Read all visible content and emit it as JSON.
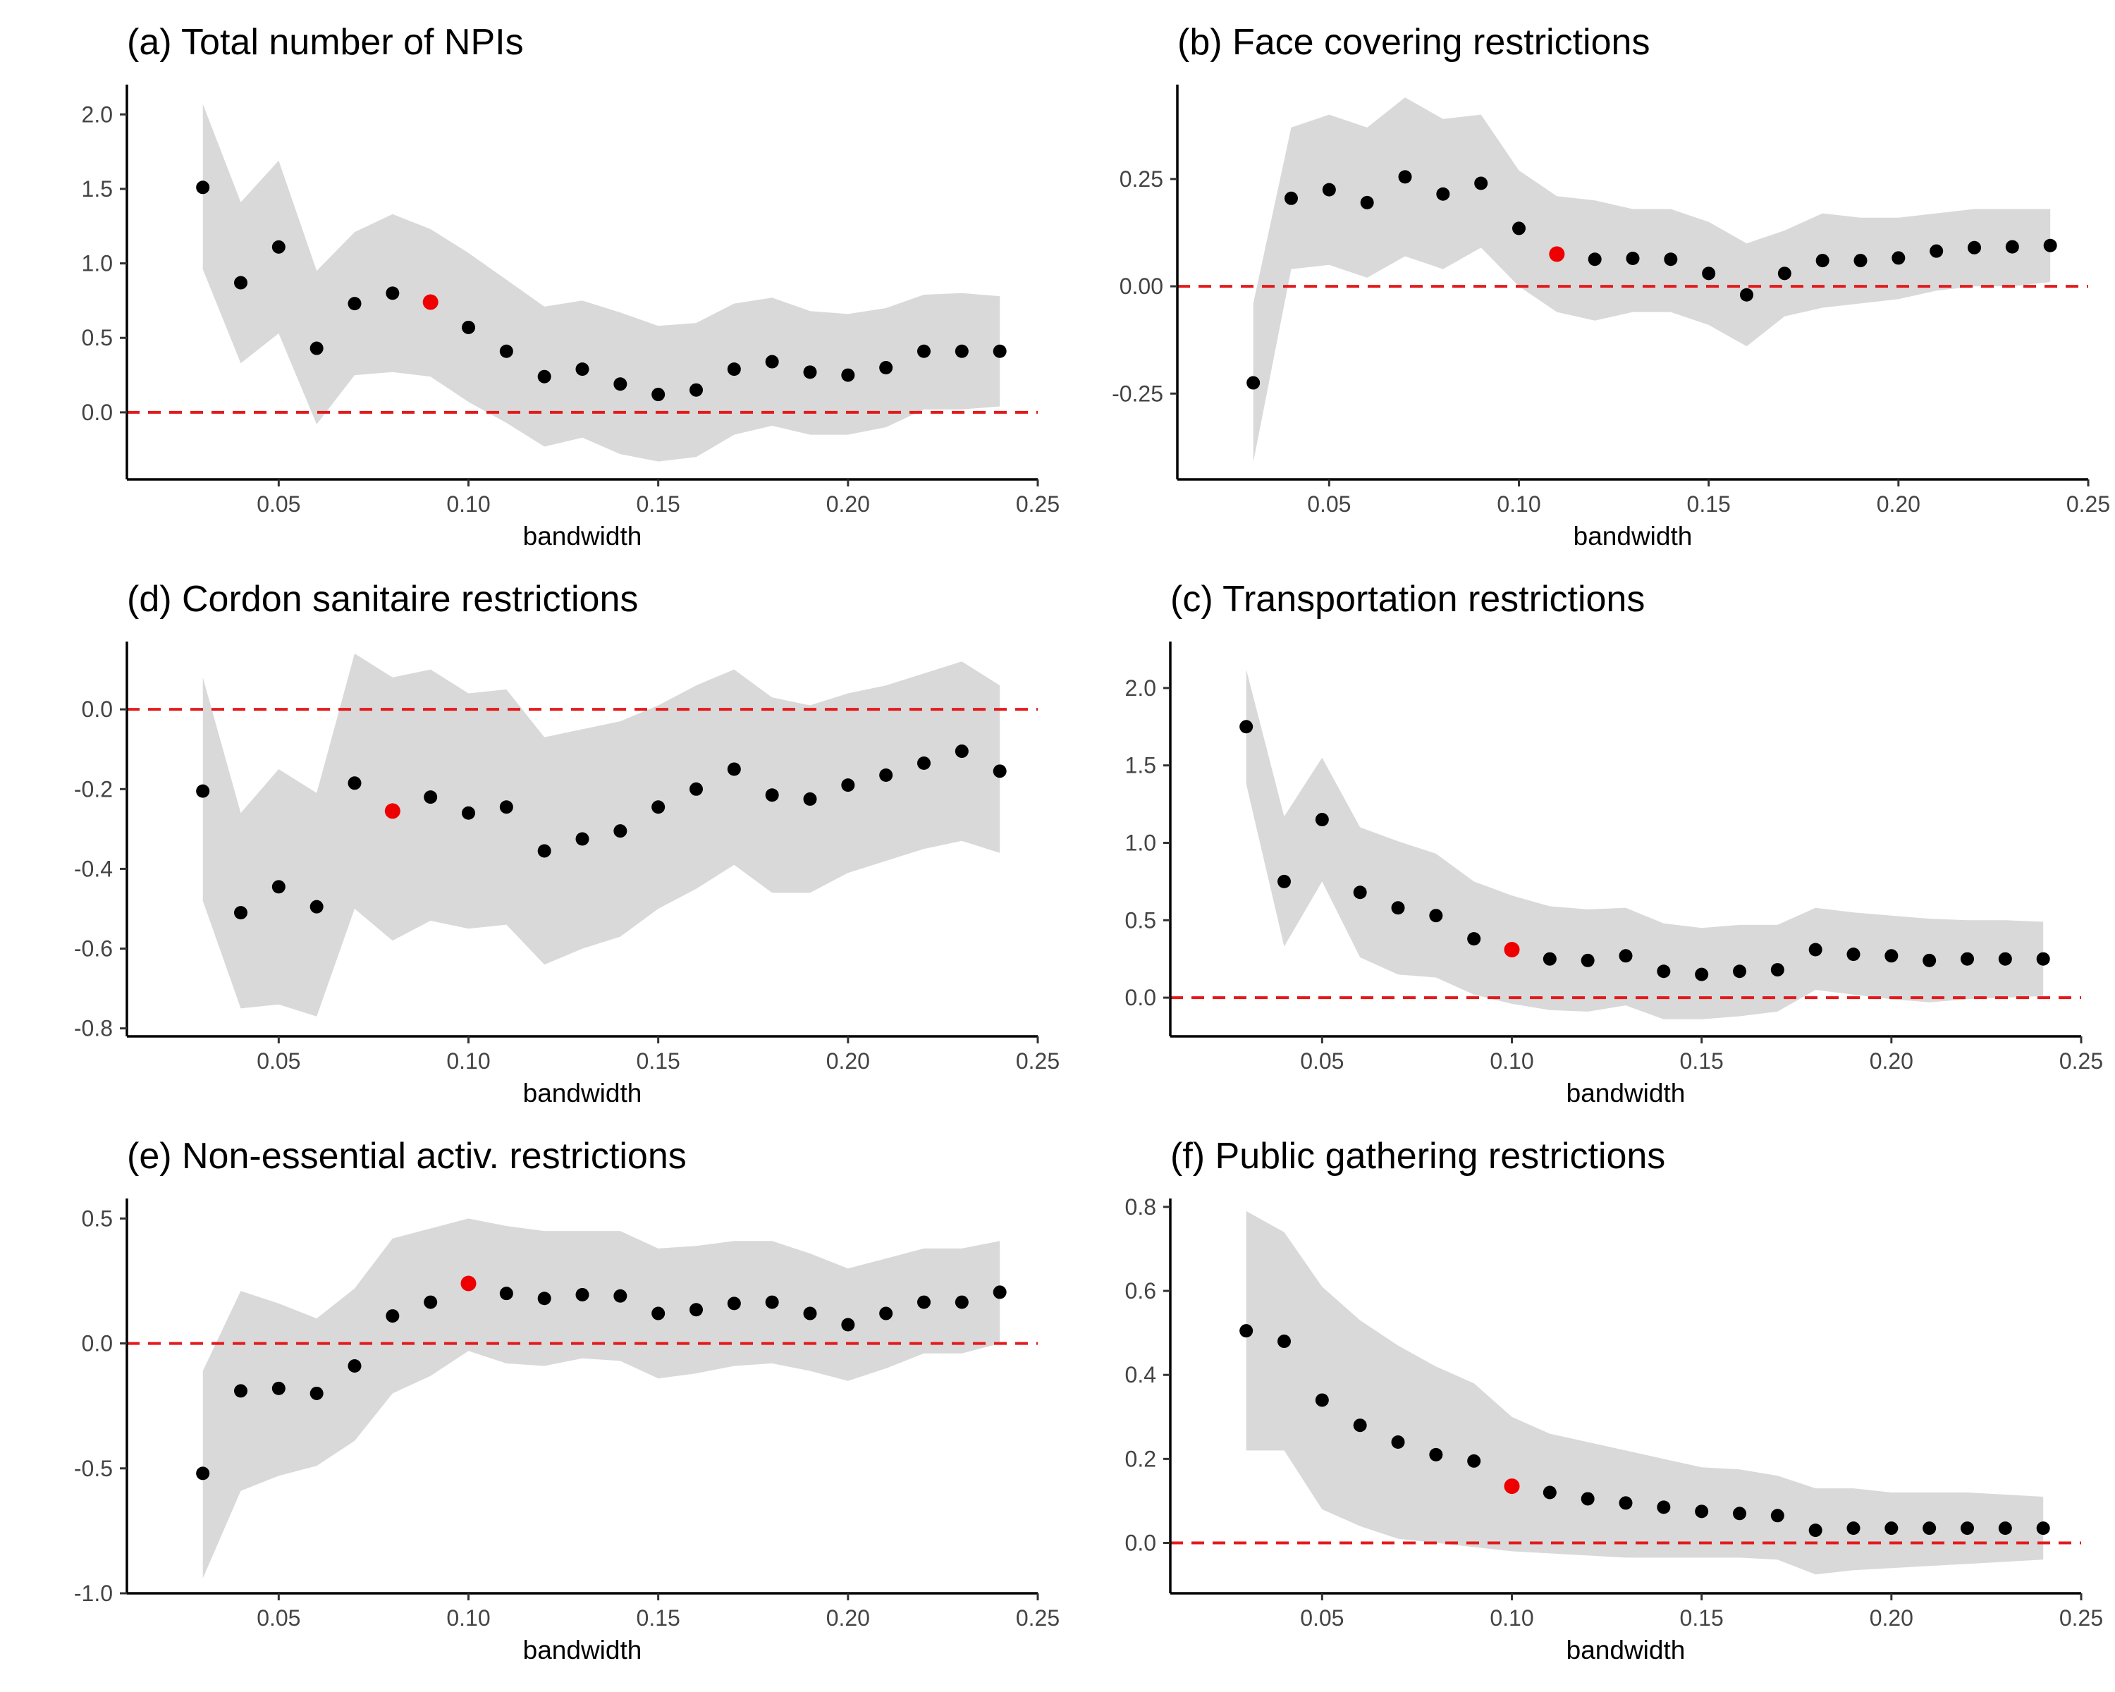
{
  "chart_data": [
    {
      "type": "scatter",
      "panel": "a",
      "title": "(a) Total number of NPIs",
      "xlabel": "bandwidth",
      "ylabel": "",
      "xlim": [
        0.01,
        0.25
      ],
      "ylim": [
        -0.45,
        2.2
      ],
      "xticks": [
        0.05,
        0.1,
        0.15,
        0.2,
        0.25
      ],
      "xtick_labels": [
        "0.05",
        "0.10",
        "0.15",
        "0.20",
        "0.25"
      ],
      "yticks": [
        0.0,
        0.5,
        1.0,
        1.5,
        2.0
      ],
      "ytick_labels": [
        "0.0",
        "0.5",
        "1.0",
        "1.5",
        "2.0"
      ],
      "reference_line": 0,
      "highlight_x": 0.09,
      "x": [
        0.03,
        0.04,
        0.05,
        0.06,
        0.07,
        0.08,
        0.09,
        0.1,
        0.11,
        0.12,
        0.13,
        0.14,
        0.15,
        0.16,
        0.17,
        0.18,
        0.19,
        0.2,
        0.21,
        0.22,
        0.23,
        0.24
      ],
      "y": [
        1.51,
        0.87,
        1.11,
        0.43,
        0.73,
        0.8,
        0.74,
        0.57,
        0.41,
        0.24,
        0.29,
        0.19,
        0.12,
        0.15,
        0.29,
        0.34,
        0.27,
        0.25,
        0.3,
        0.41,
        0.41,
        0.41
      ],
      "lower": [
        0.96,
        0.33,
        0.53,
        -0.08,
        0.25,
        0.27,
        0.24,
        0.07,
        -0.07,
        -0.23,
        -0.17,
        -0.28,
        -0.33,
        -0.3,
        -0.15,
        -0.09,
        -0.15,
        -0.15,
        -0.1,
        0.02,
        0.02,
        0.04
      ],
      "upper": [
        2.07,
        1.41,
        1.69,
        0.95,
        1.21,
        1.33,
        1.23,
        1.07,
        0.89,
        0.71,
        0.75,
        0.67,
        0.58,
        0.6,
        0.73,
        0.77,
        0.68,
        0.66,
        0.7,
        0.79,
        0.8,
        0.78
      ],
      "colors": {
        "point": "#000000",
        "highlight": "#ee0000",
        "ribbon": "#d9d9d9",
        "zero_line": "#e31a1c"
      }
    },
    {
      "type": "scatter",
      "panel": "b",
      "title": "(b) Face covering restrictions",
      "xlabel": "bandwidth",
      "ylabel": "",
      "xlim": [
        0.01,
        0.25
      ],
      "ylim": [
        -0.45,
        0.47
      ],
      "xticks": [
        0.05,
        0.1,
        0.15,
        0.2,
        0.25
      ],
      "xtick_labels": [
        "0.05",
        "0.10",
        "0.15",
        "0.20",
        "0.25"
      ],
      "yticks": [
        -0.25,
        0.0,
        0.25
      ],
      "ytick_labels": [
        "-0.25",
        "0.00",
        "0.25"
      ],
      "reference_line": 0,
      "highlight_x": 0.11,
      "x": [
        0.03,
        0.04,
        0.05,
        0.06,
        0.07,
        0.08,
        0.09,
        0.1,
        0.11,
        0.12,
        0.13,
        0.14,
        0.15,
        0.16,
        0.17,
        0.18,
        0.19,
        0.2,
        0.21,
        0.22,
        0.23,
        0.24
      ],
      "y": [
        -0.225,
        0.205,
        0.225,
        0.195,
        0.255,
        0.215,
        0.24,
        0.135,
        0.075,
        0.063,
        0.065,
        0.063,
        0.03,
        -0.02,
        0.03,
        0.06,
        0.06,
        0.066,
        0.082,
        0.09,
        0.092,
        0.095
      ],
      "lower": [
        -0.41,
        0.04,
        0.05,
        0.02,
        0.07,
        0.04,
        0.09,
        0.0,
        -0.06,
        -0.08,
        -0.06,
        -0.06,
        -0.09,
        -0.14,
        -0.07,
        -0.05,
        -0.04,
        -0.03,
        -0.01,
        0.0,
        0.0,
        0.01
      ],
      "upper": [
        -0.04,
        0.37,
        0.4,
        0.37,
        0.44,
        0.39,
        0.4,
        0.27,
        0.21,
        0.2,
        0.18,
        0.18,
        0.15,
        0.1,
        0.13,
        0.17,
        0.16,
        0.16,
        0.17,
        0.18,
        0.18,
        0.18
      ],
      "colors": {
        "point": "#000000",
        "highlight": "#ee0000",
        "ribbon": "#d9d9d9",
        "zero_line": "#e31a1c"
      }
    },
    {
      "type": "scatter",
      "panel": "d",
      "title": "(d) Cordon sanitaire restrictions",
      "xlabel": "bandwidth",
      "ylabel": "",
      "xlim": [
        0.01,
        0.25
      ],
      "ylim": [
        -0.82,
        0.17
      ],
      "xticks": [
        0.05,
        0.1,
        0.15,
        0.2,
        0.25
      ],
      "xtick_labels": [
        "0.05",
        "0.10",
        "0.15",
        "0.20",
        "0.25"
      ],
      "yticks": [
        -0.8,
        -0.6,
        -0.4,
        -0.2,
        0.0
      ],
      "ytick_labels": [
        "-0.8",
        "-0.6",
        "-0.4",
        "-0.2",
        "0.0"
      ],
      "reference_line": 0,
      "highlight_x": 0.08,
      "x": [
        0.03,
        0.04,
        0.05,
        0.06,
        0.07,
        0.08,
        0.09,
        0.1,
        0.11,
        0.12,
        0.13,
        0.14,
        0.15,
        0.16,
        0.17,
        0.18,
        0.19,
        0.2,
        0.21,
        0.22,
        0.23,
        0.24
      ],
      "y": [
        -0.205,
        -0.51,
        -0.445,
        -0.495,
        -0.185,
        -0.255,
        -0.22,
        -0.26,
        -0.245,
        -0.355,
        -0.325,
        -0.305,
        -0.245,
        -0.2,
        -0.15,
        -0.215,
        -0.225,
        -0.19,
        -0.165,
        -0.135,
        -0.105,
        -0.155
      ],
      "lower": [
        -0.48,
        -0.75,
        -0.74,
        -0.77,
        -0.5,
        -0.58,
        -0.53,
        -0.55,
        -0.54,
        -0.64,
        -0.6,
        -0.57,
        -0.5,
        -0.45,
        -0.39,
        -0.46,
        -0.46,
        -0.41,
        -0.38,
        -0.35,
        -0.33,
        -0.36
      ],
      "upper": [
        0.08,
        -0.26,
        -0.15,
        -0.21,
        0.14,
        0.08,
        0.1,
        0.04,
        0.05,
        -0.07,
        -0.05,
        -0.03,
        0.01,
        0.06,
        0.1,
        0.03,
        0.01,
        0.04,
        0.06,
        0.09,
        0.12,
        0.06
      ],
      "colors": {
        "point": "#000000",
        "highlight": "#ee0000",
        "ribbon": "#d9d9d9",
        "zero_line": "#e31a1c"
      }
    },
    {
      "type": "scatter",
      "panel": "c",
      "title": "(c) Transportation restrictions",
      "xlabel": "bandwidth",
      "ylabel": "",
      "xlim": [
        0.01,
        0.25
      ],
      "ylim": [
        -0.25,
        2.3
      ],
      "xticks": [
        0.05,
        0.1,
        0.15,
        0.2,
        0.25
      ],
      "xtick_labels": [
        "0.05",
        "0.10",
        "0.15",
        "0.20",
        "0.25"
      ],
      "yticks": [
        0.0,
        0.5,
        1.0,
        1.5,
        2.0
      ],
      "ytick_labels": [
        "0.0",
        "0.5",
        "1.0",
        "1.5",
        "2.0"
      ],
      "reference_line": 0,
      "highlight_x": 0.1,
      "x": [
        0.03,
        0.04,
        0.05,
        0.06,
        0.07,
        0.08,
        0.09,
        0.1,
        0.11,
        0.12,
        0.13,
        0.14,
        0.15,
        0.16,
        0.17,
        0.18,
        0.19,
        0.2,
        0.21,
        0.22,
        0.23,
        0.24
      ],
      "y": [
        1.75,
        0.75,
        1.15,
        0.68,
        0.58,
        0.53,
        0.38,
        0.31,
        0.25,
        0.24,
        0.27,
        0.17,
        0.15,
        0.17,
        0.18,
        0.31,
        0.28,
        0.27,
        0.24,
        0.25,
        0.25,
        0.25
      ],
      "lower": [
        1.38,
        0.33,
        0.75,
        0.26,
        0.15,
        0.13,
        0.02,
        -0.04,
        -0.08,
        -0.09,
        -0.05,
        -0.14,
        -0.14,
        -0.12,
        -0.09,
        0.05,
        0.02,
        -0.01,
        -0.03,
        -0.01,
        0.0,
        0.01
      ],
      "upper": [
        2.12,
        1.17,
        1.55,
        1.1,
        1.01,
        0.93,
        0.75,
        0.66,
        0.59,
        0.57,
        0.58,
        0.48,
        0.45,
        0.47,
        0.47,
        0.58,
        0.55,
        0.53,
        0.51,
        0.5,
        0.5,
        0.49
      ],
      "colors": {
        "point": "#000000",
        "highlight": "#ee0000",
        "ribbon": "#d9d9d9",
        "zero_line": "#e31a1c"
      }
    },
    {
      "type": "scatter",
      "panel": "e",
      "title": "(e) Non-essential activ. restrictions",
      "xlabel": "bandwidth",
      "ylabel": "",
      "xlim": [
        0.01,
        0.25
      ],
      "ylim": [
        -1.0,
        0.58
      ],
      "xticks": [
        0.05,
        0.1,
        0.15,
        0.2,
        0.25
      ],
      "xtick_labels": [
        "0.05",
        "0.10",
        "0.15",
        "0.20",
        "0.25"
      ],
      "yticks": [
        -1.0,
        -0.5,
        0.0,
        0.5
      ],
      "ytick_labels": [
        "-1.0",
        "-0.5",
        "0.0",
        "0.5"
      ],
      "reference_line": 0,
      "highlight_x": 0.1,
      "x": [
        0.03,
        0.04,
        0.05,
        0.06,
        0.07,
        0.08,
        0.09,
        0.1,
        0.11,
        0.12,
        0.13,
        0.14,
        0.15,
        0.16,
        0.17,
        0.18,
        0.19,
        0.2,
        0.21,
        0.22,
        0.23,
        0.24
      ],
      "y": [
        -0.52,
        -0.19,
        -0.18,
        -0.2,
        -0.09,
        0.11,
        0.165,
        0.24,
        0.2,
        0.18,
        0.195,
        0.19,
        0.12,
        0.135,
        0.16,
        0.165,
        0.12,
        0.075,
        0.12,
        0.165,
        0.165,
        0.205
      ],
      "lower": [
        -0.94,
        -0.59,
        -0.53,
        -0.49,
        -0.39,
        -0.2,
        -0.13,
        -0.03,
        -0.08,
        -0.09,
        -0.06,
        -0.07,
        -0.14,
        -0.12,
        -0.09,
        -0.08,
        -0.11,
        -0.15,
        -0.1,
        -0.04,
        -0.04,
        0.0
      ],
      "upper": [
        -0.11,
        0.21,
        0.16,
        0.1,
        0.22,
        0.42,
        0.46,
        0.5,
        0.47,
        0.45,
        0.45,
        0.45,
        0.38,
        0.39,
        0.41,
        0.41,
        0.36,
        0.3,
        0.34,
        0.38,
        0.38,
        0.41
      ],
      "colors": {
        "point": "#000000",
        "highlight": "#ee0000",
        "ribbon": "#d9d9d9",
        "zero_line": "#e31a1c"
      }
    },
    {
      "type": "scatter",
      "panel": "f",
      "title": "(f) Public gathering restrictions",
      "xlabel": "bandwidth",
      "ylabel": "",
      "xlim": [
        0.01,
        0.25
      ],
      "ylim": [
        -0.12,
        0.82
      ],
      "xticks": [
        0.05,
        0.1,
        0.15,
        0.2,
        0.25
      ],
      "xtick_labels": [
        "0.05",
        "0.10",
        "0.15",
        "0.20",
        "0.25"
      ],
      "yticks": [
        0.0,
        0.2,
        0.4,
        0.6,
        0.8
      ],
      "ytick_labels": [
        "0.0",
        "0.2",
        "0.4",
        "0.6",
        "0.8"
      ],
      "reference_line": 0,
      "highlight_x": 0.1,
      "x": [
        0.03,
        0.04,
        0.05,
        0.06,
        0.07,
        0.08,
        0.09,
        0.1,
        0.11,
        0.12,
        0.13,
        0.14,
        0.15,
        0.16,
        0.17,
        0.18,
        0.19,
        0.2,
        0.21,
        0.22,
        0.23,
        0.24
      ],
      "y": [
        0.505,
        0.48,
        0.34,
        0.28,
        0.24,
        0.21,
        0.195,
        0.135,
        0.12,
        0.105,
        0.095,
        0.085,
        0.075,
        0.07,
        0.065,
        0.03,
        0.035,
        0.035,
        0.035,
        0.035,
        0.035,
        0.035
      ],
      "lower": [
        0.22,
        0.22,
        0.08,
        0.04,
        0.01,
        0.0,
        -0.01,
        -0.02,
        -0.025,
        -0.03,
        -0.035,
        -0.035,
        -0.035,
        -0.035,
        -0.04,
        -0.075,
        -0.065,
        -0.06,
        -0.055,
        -0.05,
        -0.045,
        -0.04
      ],
      "upper": [
        0.79,
        0.74,
        0.61,
        0.53,
        0.47,
        0.42,
        0.38,
        0.3,
        0.26,
        0.24,
        0.22,
        0.2,
        0.18,
        0.175,
        0.16,
        0.13,
        0.13,
        0.12,
        0.12,
        0.12,
        0.115,
        0.11
      ],
      "colors": {
        "point": "#000000",
        "highlight": "#ee0000",
        "ribbon": "#d9d9d9",
        "zero_line": "#e31a1c"
      }
    }
  ]
}
